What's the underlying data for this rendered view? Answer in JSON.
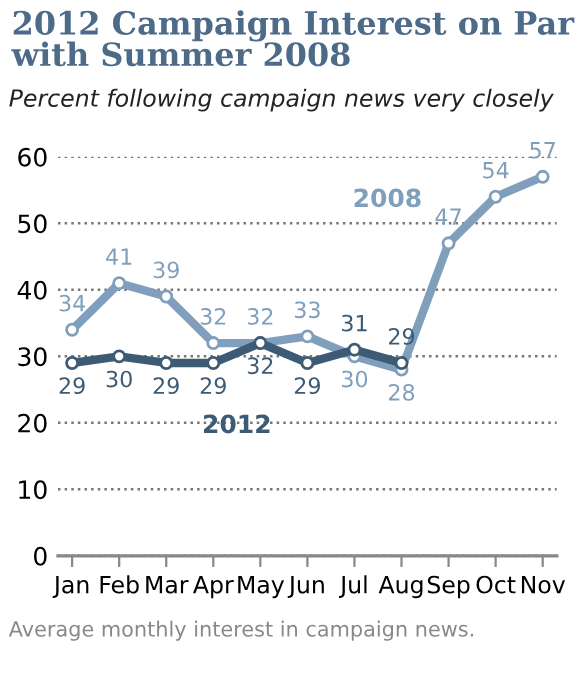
{
  "chart_data": {
    "type": "line",
    "title": "2012 Campaign Interest on Par with Summer 2008",
    "subtitle": "Percent following campaign news very closely",
    "categories": [
      "Jan",
      "Feb",
      "Mar",
      "Apr",
      "May",
      "Jun",
      "Jul",
      "Aug",
      "Sep",
      "Oct",
      "Nov"
    ],
    "series": [
      {
        "name": "2008",
        "color": "#7f9fbc",
        "values": [
          34,
          41,
          39,
          32,
          32,
          33,
          30,
          28,
          47,
          54,
          57
        ]
      },
      {
        "name": "2012",
        "color": "#3e5b75",
        "values": [
          29,
          30,
          29,
          29,
          32,
          29,
          31,
          29,
          null,
          null,
          null
        ]
      }
    ],
    "ylim": [
      0,
      60
    ],
    "yticks": [
      0,
      10,
      20,
      30,
      40,
      50,
      60
    ],
    "grid": "y",
    "legend": false,
    "marker": "circle",
    "line_style": "solid",
    "data_labels": true,
    "annotations": [
      "Average monthly interest in campaign news."
    ]
  }
}
